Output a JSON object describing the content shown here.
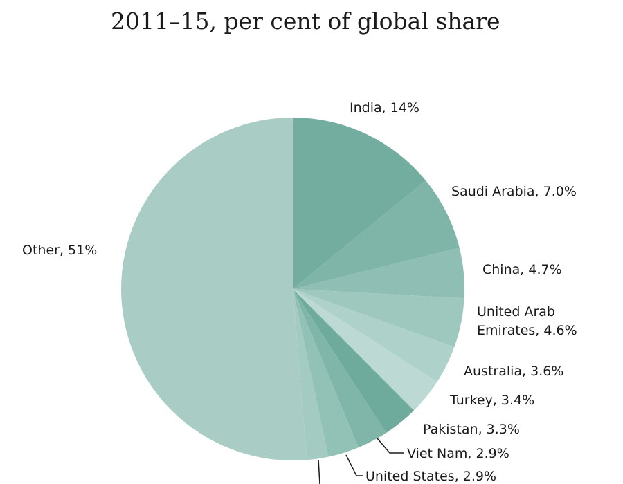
{
  "title_lines": [
    "2011–15, per cent of global share"
  ],
  "chart_data": {
    "type": "pie",
    "title": "2011–15, per cent of global share",
    "slices": [
      {
        "label": "India, 14%",
        "value": 14.0,
        "color": "#72ada0"
      },
      {
        "label": "Saudi Arabia, 7.0%",
        "value": 7.0,
        "color": "#7fb5a8"
      },
      {
        "label": "China, 4.7%",
        "value": 4.7,
        "color": "#8fbfb4"
      },
      {
        "label": [
          "United Arab",
          "Emirates, 4.6%"
        ],
        "value": 4.6,
        "color": "#9ec8be"
      },
      {
        "label": "Australia, 3.6%",
        "value": 3.6,
        "color": "#aed2ca"
      },
      {
        "label": "Turkey, 3.4%",
        "value": 3.4,
        "color": "#bcdad3"
      },
      {
        "label": "Pakistan, 3.3%",
        "value": 3.3,
        "color": "#6fab9d"
      },
      {
        "label": "Viet Nam, 2.9%",
        "value": 2.9,
        "color": "#80b6aa"
      },
      {
        "label": "United States, 2.9%",
        "value": 2.9,
        "color": "#92c1b6"
      },
      {
        "label": "",
        "value": 2.0,
        "color": "#a4cbc1"
      },
      {
        "label": "Other, 51%",
        "value": 51.0,
        "color": "#a9cdc4"
      }
    ]
  }
}
